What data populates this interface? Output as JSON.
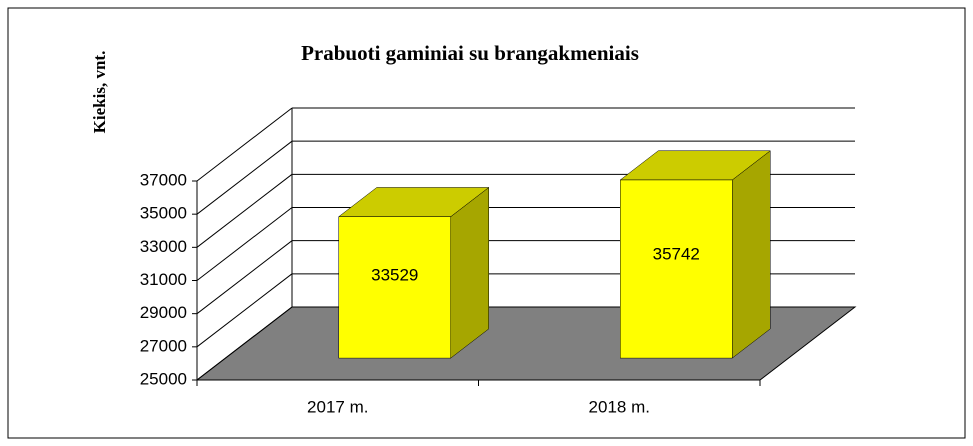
{
  "chart_data": {
    "type": "bar3d",
    "title": "Prabuoti gaminiai su brangakmeniais",
    "y_label": "Kiekis, vnt.",
    "categories": [
      "2017 m.",
      "2018 m."
    ],
    "values": [
      33529,
      35742
    ],
    "ylim": [
      25000,
      37000
    ],
    "yticks": [
      25000,
      27000,
      29000,
      31000,
      33000,
      35000,
      37000
    ],
    "grid": true,
    "color": "#ffff00",
    "floor_color": "#808080"
  }
}
